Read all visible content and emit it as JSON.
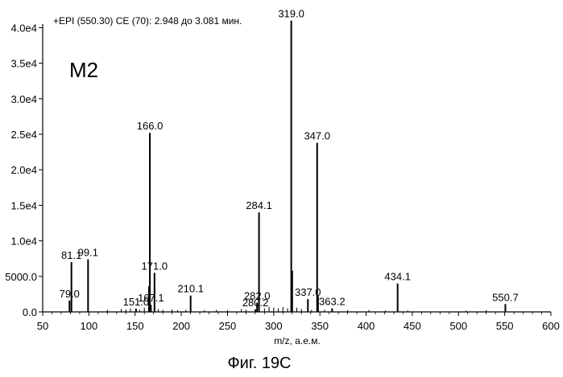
{
  "chart_data": {
    "type": "bar",
    "header": "+EPI (550.30) CE (70): 2.948 до 3.081 мин.",
    "compound_label": "M2",
    "xlabel": "m/z, а.е.м.",
    "caption": "Фиг. 19С",
    "xlim": [
      50,
      600
    ],
    "ylim": [
      0,
      40500
    ],
    "x_ticks": [
      50,
      100,
      150,
      200,
      250,
      300,
      350,
      400,
      450,
      500,
      550,
      600
    ],
    "x_tick_labels": [
      "50",
      "100",
      "150",
      "200",
      "250",
      "300",
      "350",
      "400",
      "450",
      "500",
      "550",
      "600"
    ],
    "y_ticks": [
      0,
      5000,
      10000,
      15000,
      20000,
      25000,
      30000,
      35000,
      40000
    ],
    "y_tick_labels": [
      "0.0",
      "5000.0",
      "1.0e4",
      "1.5e4",
      "2.0e4",
      "2.5e4",
      "3.0e4",
      "3.5e4",
      "4.0e4"
    ],
    "grid": false,
    "peaks": [
      {
        "x": 79.0,
        "y": 1600,
        "label": "79.0"
      },
      {
        "x": 81.1,
        "y": 7000,
        "label": "81.1"
      },
      {
        "x": 99.1,
        "y": 7400,
        "label": "99.1"
      },
      {
        "x": 151.0,
        "y": 450,
        "label": "151.0"
      },
      {
        "x": 165.0,
        "y": 3600,
        "label": ""
      },
      {
        "x": 166.0,
        "y": 25200,
        "label": "166.0"
      },
      {
        "x": 167.1,
        "y": 1000,
        "label": "167.1"
      },
      {
        "x": 171.0,
        "y": 5500,
        "label": "171.0"
      },
      {
        "x": 210.1,
        "y": 2300,
        "label": "210.1"
      },
      {
        "x": 280.2,
        "y": 350,
        "label": "280.2"
      },
      {
        "x": 282.0,
        "y": 1300,
        "label": "282.0"
      },
      {
        "x": 284.1,
        "y": 14000,
        "label": "284.1"
      },
      {
        "x": 319.0,
        "y": 41000,
        "label": "319.0"
      },
      {
        "x": 320.0,
        "y": 5800,
        "label": ""
      },
      {
        "x": 337.0,
        "y": 1800,
        "label": "337.0"
      },
      {
        "x": 347.0,
        "y": 23800,
        "label": "347.0"
      },
      {
        "x": 348.0,
        "y": 2200,
        "label": ""
      },
      {
        "x": 363.2,
        "y": 500,
        "label": "363.2"
      },
      {
        "x": 434.1,
        "y": 4000,
        "label": "434.1"
      },
      {
        "x": 550.7,
        "y": 1100,
        "label": "550.7"
      }
    ],
    "minor_peaks": [
      {
        "x": 120,
        "y": 300
      },
      {
        "x": 135,
        "y": 400
      },
      {
        "x": 140,
        "y": 350
      },
      {
        "x": 145,
        "y": 500
      },
      {
        "x": 155,
        "y": 300
      },
      {
        "x": 160,
        "y": 600
      },
      {
        "x": 175,
        "y": 400
      },
      {
        "x": 180,
        "y": 300
      },
      {
        "x": 190,
        "y": 350
      },
      {
        "x": 196,
        "y": 250
      },
      {
        "x": 205,
        "y": 300
      },
      {
        "x": 225,
        "y": 250
      },
      {
        "x": 238,
        "y": 300
      },
      {
        "x": 250,
        "y": 250
      },
      {
        "x": 265,
        "y": 400
      },
      {
        "x": 270,
        "y": 300
      },
      {
        "x": 290,
        "y": 500
      },
      {
        "x": 295,
        "y": 700
      },
      {
        "x": 300,
        "y": 600
      },
      {
        "x": 305,
        "y": 500
      },
      {
        "x": 310,
        "y": 700
      },
      {
        "x": 315,
        "y": 500
      },
      {
        "x": 325,
        "y": 600
      },
      {
        "x": 330,
        "y": 400
      },
      {
        "x": 341,
        "y": 300
      },
      {
        "x": 355,
        "y": 300
      },
      {
        "x": 380,
        "y": 250
      },
      {
        "x": 403,
        "y": 250
      },
      {
        "x": 421,
        "y": 200
      },
      {
        "x": 445,
        "y": 200
      },
      {
        "x": 508,
        "y": 200
      },
      {
        "x": 530,
        "y": 250
      }
    ]
  }
}
